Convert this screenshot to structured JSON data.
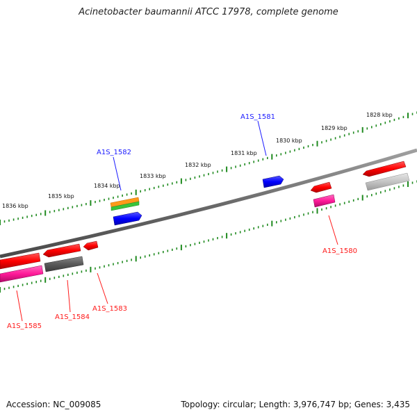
{
  "title": "Acinetobacter baumannii ATCC 17978, complete genome",
  "footer": {
    "accession": "Accession: NC_009085",
    "summary": "Topology: circular; Length: 3,976,747 bp; Genes: 3,435"
  },
  "ruler": {
    "labels": [
      "1828 kbp",
      "1829 kbp",
      "1830 kbp",
      "1831 kbp",
      "1832 kbp",
      "1833 kbp",
      "1834 kbp",
      "1835 kbp",
      "1836 kbp"
    ]
  },
  "genes": {
    "forward": [
      {
        "id": "A1S_1581",
        "color": "#1a1aff"
      },
      {
        "id": "A1S_1582",
        "color": "#1a1aff"
      }
    ],
    "reverse": [
      {
        "id": "A1S_1580",
        "color": "#ff1a1a"
      },
      {
        "id": "A1S_1583",
        "color": "#ff1a1a"
      },
      {
        "id": "A1S_1584",
        "color": "#ff1a1a"
      },
      {
        "id": "A1S_1585",
        "color": "#ff1a1a"
      }
    ]
  },
  "colors": {
    "cds_forward": "#1a1aff",
    "cds_reverse": "#ff1a1a",
    "pseudo": "#5a5a5a",
    "pseudo_light": "#bdbdbd",
    "rna_magenta": "#ff1a99",
    "rna_orange": "#ff9a1a",
    "rna_green": "#3ac43a",
    "backbone": "#7a7a7a",
    "tick": "#1f8a1f"
  }
}
